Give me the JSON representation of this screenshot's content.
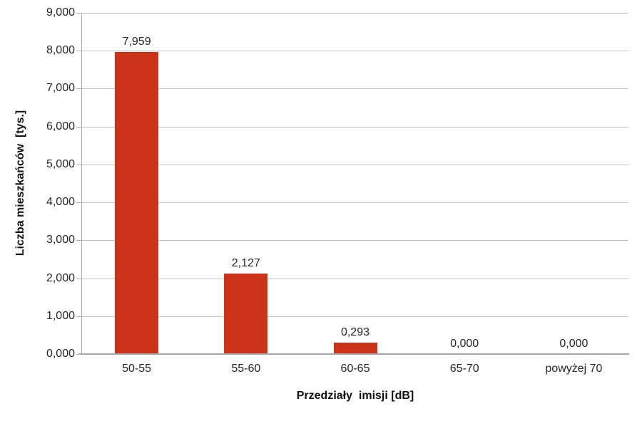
{
  "chart_data": {
    "type": "bar",
    "title": "",
    "xlabel": "Przedziały  imisji [dB]",
    "ylabel": "Liczba mieszkańców  [tys.]",
    "categories": [
      "50-55",
      "55-60",
      "60-65",
      "65-70",
      "powyżej 70"
    ],
    "values": [
      7.959,
      2.127,
      0.293,
      0.0,
      0.0
    ],
    "value_labels": [
      "7,959",
      "2,127",
      "0,293",
      "0,000",
      "0,000"
    ],
    "ylim": [
      0,
      9
    ],
    "ytick_step": 1,
    "ytick_labels": [
      "0,000",
      "1,000",
      "2,000",
      "3,000",
      "4,000",
      "5,000",
      "6,000",
      "7,000",
      "8,000",
      "9,000"
    ],
    "grid": "horizontal",
    "legend": "none",
    "bar_color": "#CB3318",
    "grid_color": "#C3C3C3",
    "axis_color": "#ABABAB",
    "baseline_color": "#A6A6A6",
    "text_color": "#262626"
  }
}
